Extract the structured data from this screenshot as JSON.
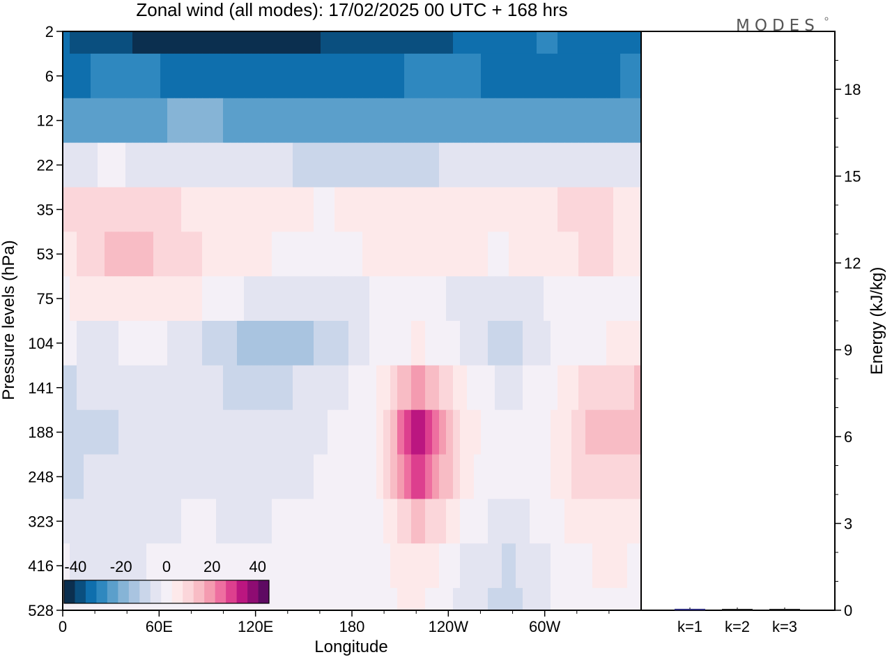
{
  "logo": "MODES",
  "chart_data": [
    {
      "type": "heatmap",
      "title": "Zonal wind (all modes):  17/02/2025  00 UTC  + 168 hrs",
      "xlabel": "Longitude",
      "ylabel": "Pressure levels (hPa)",
      "x_ticks": [
        "0",
        "60E",
        "120E",
        "180",
        "120W",
        "60W"
      ],
      "x_tick_degrees": [
        0,
        60,
        120,
        180,
        240,
        300
      ],
      "xlim": [
        0,
        360
      ],
      "y_ticks": [
        "2",
        "6",
        "12",
        "22",
        "35",
        "53",
        "75",
        "104",
        "141",
        "188",
        "248",
        "323",
        "416",
        "528"
      ],
      "colorbar": {
        "labels": [
          "-40",
          "-20",
          "0",
          "20",
          "40"
        ],
        "label_values": [
          -40,
          -20,
          0,
          20,
          40
        ],
        "range": [
          -45,
          45
        ],
        "colors": [
          "#0b2f4f",
          "#0a4f7f",
          "#0f6fad",
          "#2f88bf",
          "#5b9fcb",
          "#86b4d6",
          "#a9c4e0",
          "#cad6ea",
          "#e3e4f1",
          "#f4f0f7",
          "#fde9ea",
          "#fbd6da",
          "#f8bcc5",
          "#f49bb0",
          "#ee6fa0",
          "#dd3f8e",
          "#bb1680",
          "#8e0c72",
          "#5e0a62"
        ]
      },
      "bands": [
        {
          "pressure": 2,
          "wind": [
            -35,
            -38,
            -42,
            -43,
            -43,
            -42,
            -40,
            -38,
            -38,
            -35,
            -32,
            -30,
            -34,
            -32
          ]
        },
        {
          "pressure": 6,
          "wind": [
            -32,
            -30,
            -30,
            -33,
            -35,
            -35,
            -34,
            -33,
            -30,
            -30,
            -32,
            -33,
            -35,
            -28
          ]
        },
        {
          "pressure": 12,
          "wind": [
            -22,
            -22,
            -22,
            -20,
            -22,
            -23,
            -24,
            -25,
            -24,
            -23,
            -22,
            -22,
            -22,
            -22
          ]
        },
        {
          "pressure": 22,
          "wind": [
            -4,
            -2,
            -3,
            -4,
            -5,
            -7,
            -8,
            -10,
            -8,
            -6,
            -6,
            -6,
            -5,
            -4
          ]
        },
        {
          "pressure": 35,
          "wind": [
            8,
            10,
            10,
            6,
            4,
            3,
            2,
            4,
            5,
            5,
            5,
            7,
            8,
            5
          ]
        },
        {
          "pressure": 53,
          "wind": [
            5,
            12,
            12,
            8,
            3,
            2,
            1,
            3,
            6,
            3,
            2,
            6,
            8,
            6
          ]
        },
        {
          "pressure": 75,
          "wind": [
            2,
            5,
            6,
            3,
            -2,
            -5,
            -4,
            -2,
            1,
            -4,
            -5,
            -2,
            0,
            0
          ]
        },
        {
          "pressure": 104,
          "wind": [
            -2,
            -3,
            -1,
            -6,
            -12,
            -16,
            -10,
            -2,
            3,
            -3,
            -10,
            -2,
            2,
            4
          ]
        },
        {
          "pressure": 141,
          "wind": [
            -8,
            -5,
            -3,
            -5,
            -9,
            -8,
            -4,
            0,
            20,
            3,
            -4,
            2,
            10,
            12
          ]
        },
        {
          "pressure": 188,
          "wind": [
            -10,
            -8,
            -5,
            -5,
            -6,
            -5,
            -2,
            0,
            36,
            5,
            -2,
            2,
            16,
            15
          ]
        },
        {
          "pressure": 248,
          "wind": [
            -8,
            -6,
            -4,
            -3,
            -4,
            -3,
            -2,
            0,
            30,
            4,
            -2,
            2,
            12,
            10
          ]
        },
        {
          "pressure": 323,
          "wind": [
            -4,
            -6,
            -3,
            -2,
            -3,
            -2,
            -2,
            0,
            14,
            2,
            -5,
            1,
            7,
            5
          ]
        },
        {
          "pressure": 416,
          "wind": [
            -2,
            -4,
            -2,
            -2,
            -2,
            -2,
            -2,
            0,
            6,
            -3,
            -8,
            -2,
            3,
            2
          ]
        },
        {
          "pressure": 528,
          "wind": [
            -2,
            -2,
            -2,
            -2,
            -2,
            -2,
            -2,
            0,
            4,
            -4,
            -10,
            -2,
            2,
            2
          ]
        }
      ]
    },
    {
      "type": "bar",
      "ylabel": "Energy (kJ/kg)",
      "categories": [
        "k=1",
        "k=2",
        "k=3"
      ],
      "values": [
        0.05,
        0.03,
        0.03
      ],
      "ylim": [
        0,
        20
      ],
      "y_ticks": [
        "0",
        "3",
        "6",
        "9",
        "12",
        "15",
        "18"
      ],
      "y_tick_values": [
        0,
        3,
        6,
        9,
        12,
        15,
        18
      ],
      "bar_colors": [
        "#2a2a7a",
        "#1a1a1a",
        "#1a1a1a"
      ]
    }
  ]
}
